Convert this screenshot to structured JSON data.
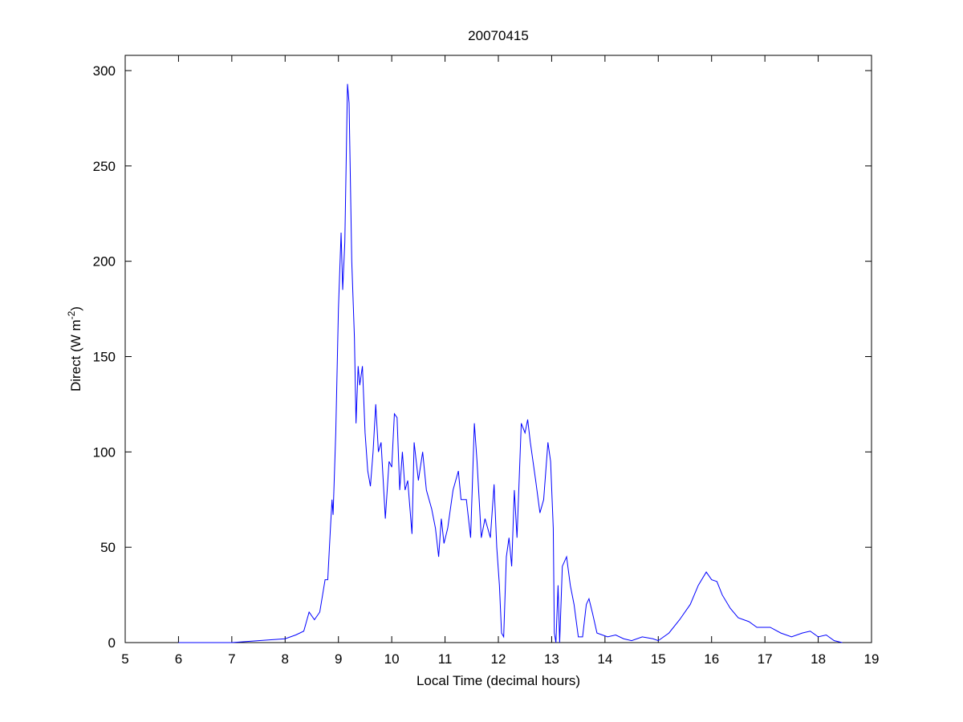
{
  "chart_data": {
    "type": "line",
    "title": "20070415",
    "xlabel": "Local Time (decimal hours)",
    "ylabel": [
      "Direct (W m",
      "-2",
      ")"
    ],
    "xlim": [
      5,
      19
    ],
    "xticks": [
      5,
      6,
      7,
      8,
      9,
      10,
      11,
      12,
      13,
      14,
      15,
      16,
      17,
      18,
      19
    ],
    "ylim": [
      0,
      308
    ],
    "yticks": [
      0,
      50,
      100,
      150,
      200,
      250,
      300
    ],
    "grid": false,
    "series": [
      {
        "color": "#0000ff",
        "x": [
          6.0,
          7.0,
          7.5,
          8.0,
          8.2,
          8.35,
          8.45,
          8.55,
          8.65,
          8.75,
          8.8,
          8.85,
          8.88,
          8.9,
          8.95,
          9.0,
          9.05,
          9.08,
          9.12,
          9.17,
          9.2,
          9.25,
          9.3,
          9.33,
          9.37,
          9.4,
          9.45,
          9.5,
          9.55,
          9.6,
          9.65,
          9.7,
          9.75,
          9.8,
          9.88,
          9.95,
          10.0,
          10.05,
          10.1,
          10.15,
          10.2,
          10.25,
          10.3,
          10.38,
          10.42,
          10.5,
          10.58,
          10.65,
          10.75,
          10.82,
          10.88,
          10.93,
          10.98,
          11.05,
          11.15,
          11.25,
          11.3,
          11.4,
          11.48,
          11.55,
          11.6,
          11.68,
          11.75,
          11.85,
          11.92,
          11.97,
          12.02,
          12.06,
          12.1,
          12.15,
          12.2,
          12.25,
          12.3,
          12.35,
          12.43,
          12.5,
          12.55,
          12.6,
          12.7,
          12.78,
          12.85,
          12.93,
          12.98,
          13.03,
          13.05,
          13.08,
          13.12,
          13.15,
          13.2,
          13.28,
          13.35,
          13.42,
          13.5,
          13.58,
          13.65,
          13.7,
          13.77,
          13.85,
          13.95,
          14.05,
          14.2,
          14.35,
          14.5,
          14.7,
          14.9,
          15.0,
          15.2,
          15.4,
          15.6,
          15.75,
          15.9,
          16.0,
          16.1,
          16.2,
          16.35,
          16.5,
          16.7,
          16.85,
          17.1,
          17.3,
          17.5,
          17.7,
          17.85,
          18.0,
          18.15,
          18.3,
          18.45
        ],
        "values": [
          0,
          0,
          1,
          2,
          4,
          6,
          16,
          12,
          16,
          33,
          33,
          60,
          75,
          67,
          110,
          175,
          215,
          185,
          210,
          293,
          283,
          200,
          160,
          115,
          145,
          135,
          145,
          110,
          90,
          82,
          100,
          125,
          100,
          105,
          65,
          95,
          92,
          120,
          118,
          80,
          100,
          80,
          85,
          57,
          105,
          85,
          100,
          80,
          70,
          60,
          45,
          65,
          52,
          60,
          80,
          90,
          75,
          75,
          55,
          115,
          95,
          55,
          65,
          55,
          83,
          50,
          30,
          5,
          3,
          45,
          55,
          40,
          80,
          55,
          115,
          110,
          117,
          105,
          85,
          68,
          75,
          105,
          95,
          60,
          5,
          0,
          30,
          0,
          40,
          45,
          30,
          20,
          3,
          3,
          20,
          23,
          15,
          5,
          4,
          3,
          4,
          2,
          1,
          3,
          2,
          1,
          5,
          12,
          20,
          30,
          37,
          33,
          32,
          25,
          18,
          13,
          11,
          8,
          8,
          5,
          3,
          5,
          6,
          3,
          4,
          1,
          0
        ]
      }
    ]
  }
}
